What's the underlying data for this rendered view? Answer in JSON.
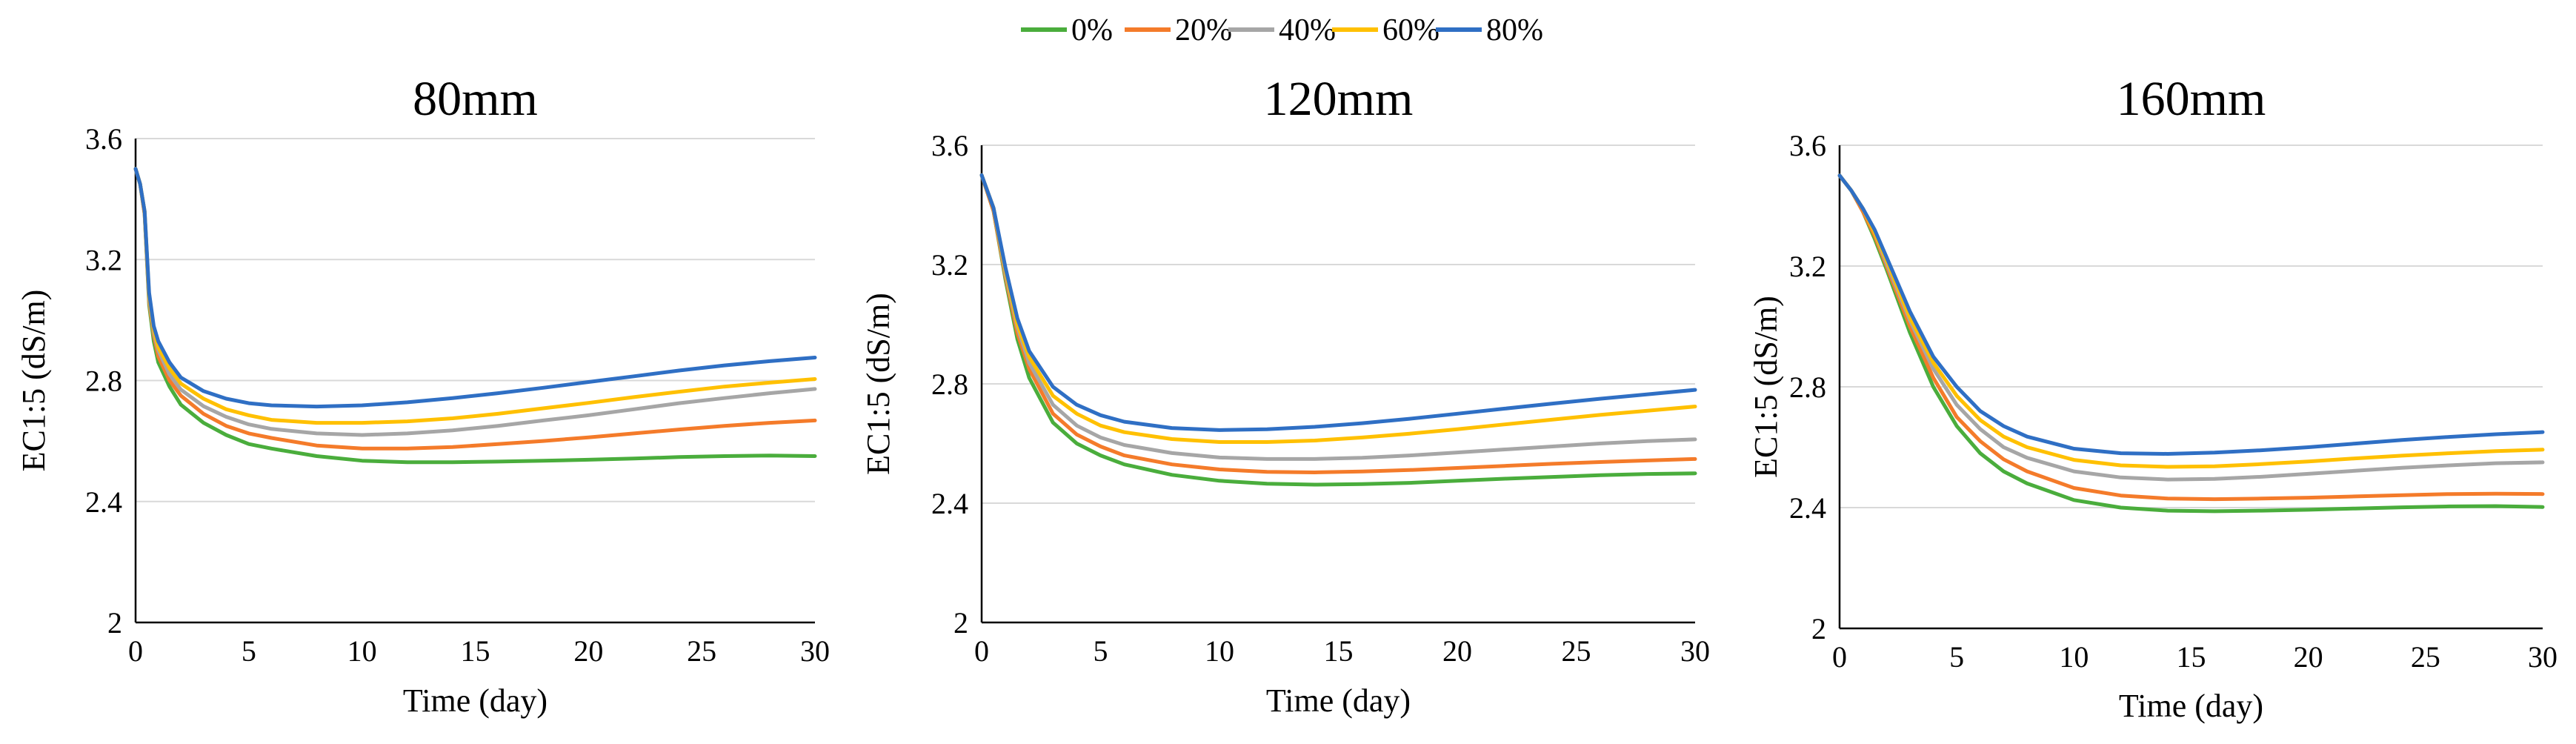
{
  "legend": {
    "entries": [
      "0%",
      "20%",
      "40%",
      "60%",
      "80%"
    ],
    "colors": [
      "#4aad3c",
      "#f47b2a",
      "#a6a6a6",
      "#ffc000",
      "#2f6fc4"
    ]
  },
  "chart_data": [
    {
      "type": "line",
      "title": "80mm",
      "xlabel": "Time (day)",
      "ylabel": "EC1:5 (dS/m)",
      "xlim": [
        0,
        30
      ],
      "ylim": [
        2,
        3.6
      ],
      "xticks": [
        "0",
        "5",
        "10",
        "15",
        "20",
        "25",
        "30"
      ],
      "yticks": [
        "2",
        "2.4",
        "2.8",
        "3.2",
        "3.6"
      ],
      "x": [
        0,
        0.2,
        0.4,
        0.6,
        0.8,
        1,
        1.5,
        2,
        3,
        4,
        5,
        6,
        8,
        10,
        12,
        14,
        16,
        18,
        20,
        22,
        24,
        26,
        28,
        30
      ],
      "series": [
        {
          "name": "0%",
          "values": [
            3.5,
            3.45,
            3.35,
            3.05,
            2.93,
            2.86,
            2.78,
            2.72,
            2.66,
            2.62,
            2.59,
            2.575,
            2.55,
            2.535,
            2.53,
            2.53,
            2.532,
            2.535,
            2.538,
            2.542,
            2.547,
            2.55,
            2.552,
            2.55
          ]
        },
        {
          "name": "20%",
          "values": [
            3.5,
            3.45,
            3.35,
            3.06,
            2.95,
            2.88,
            2.8,
            2.75,
            2.69,
            2.65,
            2.625,
            2.61,
            2.585,
            2.575,
            2.575,
            2.58,
            2.59,
            2.6,
            2.612,
            2.625,
            2.638,
            2.65,
            2.66,
            2.668
          ]
        },
        {
          "name": "40%",
          "values": [
            3.5,
            3.45,
            3.36,
            3.07,
            2.96,
            2.9,
            2.82,
            2.77,
            2.715,
            2.68,
            2.655,
            2.64,
            2.625,
            2.62,
            2.625,
            2.635,
            2.65,
            2.668,
            2.685,
            2.705,
            2.725,
            2.742,
            2.758,
            2.772
          ]
        },
        {
          "name": "60%",
          "values": [
            3.5,
            3.45,
            3.36,
            3.08,
            2.97,
            2.91,
            2.84,
            2.79,
            2.74,
            2.705,
            2.685,
            2.67,
            2.66,
            2.66,
            2.665,
            2.675,
            2.69,
            2.708,
            2.726,
            2.745,
            2.763,
            2.78,
            2.793,
            2.805
          ]
        },
        {
          "name": "80%",
          "values": [
            3.5,
            3.45,
            3.36,
            3.09,
            2.98,
            2.93,
            2.86,
            2.81,
            2.765,
            2.74,
            2.725,
            2.718,
            2.714,
            2.718,
            2.728,
            2.742,
            2.758,
            2.776,
            2.795,
            2.814,
            2.833,
            2.85,
            2.864,
            2.876
          ]
        }
      ]
    },
    {
      "type": "line",
      "title": "120mm",
      "xlabel": "Time (day)",
      "ylabel": "EC1:5 (dS/m)",
      "xlim": [
        0,
        30
      ],
      "ylim": [
        2,
        3.6
      ],
      "xticks": [
        "0",
        "5",
        "10",
        "15",
        "20",
        "25",
        "30"
      ],
      "yticks": [
        "2",
        "2.4",
        "2.8",
        "3.2",
        "3.6"
      ],
      "x": [
        0,
        0.5,
        1,
        1.5,
        2,
        3,
        4,
        5,
        6,
        8,
        10,
        12,
        14,
        16,
        18,
        20,
        22,
        24,
        26,
        28,
        30
      ],
      "series": [
        {
          "name": "0%",
          "values": [
            3.5,
            3.38,
            3.15,
            2.95,
            2.82,
            2.67,
            2.6,
            2.56,
            2.53,
            2.495,
            2.475,
            2.465,
            2.462,
            2.464,
            2.468,
            2.475,
            2.482,
            2.488,
            2.494,
            2.498,
            2.5
          ]
        },
        {
          "name": "20%",
          "values": [
            3.5,
            3.38,
            3.16,
            2.97,
            2.85,
            2.7,
            2.63,
            2.59,
            2.56,
            2.53,
            2.513,
            2.505,
            2.503,
            2.506,
            2.511,
            2.518,
            2.525,
            2.532,
            2.538,
            2.543,
            2.548
          ]
        },
        {
          "name": "40%",
          "values": [
            3.5,
            3.39,
            3.17,
            2.99,
            2.87,
            2.73,
            2.66,
            2.62,
            2.595,
            2.568,
            2.553,
            2.548,
            2.548,
            2.552,
            2.56,
            2.57,
            2.58,
            2.59,
            2.6,
            2.608,
            2.614
          ]
        },
        {
          "name": "60%",
          "values": [
            3.5,
            3.39,
            3.18,
            3.0,
            2.89,
            2.76,
            2.7,
            2.66,
            2.638,
            2.615,
            2.605,
            2.605,
            2.61,
            2.62,
            2.633,
            2.648,
            2.664,
            2.68,
            2.696,
            2.71,
            2.724
          ]
        },
        {
          "name": "80%",
          "values": [
            3.5,
            3.39,
            3.19,
            3.02,
            2.91,
            2.79,
            2.73,
            2.695,
            2.673,
            2.652,
            2.645,
            2.648,
            2.656,
            2.668,
            2.683,
            2.7,
            2.717,
            2.734,
            2.75,
            2.765,
            2.78
          ]
        }
      ]
    },
    {
      "type": "line",
      "title": "160mm",
      "xlabel": "Time (day)",
      "ylabel": "EC1:5 (dS/m)",
      "xlim": [
        0,
        30
      ],
      "ylim": [
        2,
        3.6
      ],
      "xticks": [
        "0",
        "5",
        "10",
        "15",
        "20",
        "25",
        "30"
      ],
      "yticks": [
        "2",
        "2.4",
        "2.8",
        "3.2",
        "3.6"
      ],
      "x": [
        0,
        0.5,
        1,
        1.5,
        2,
        3,
        4,
        5,
        6,
        7,
        8,
        10,
        12,
        14,
        16,
        18,
        20,
        22,
        24,
        26,
        28,
        30
      ],
      "series": [
        {
          "name": "0%",
          "values": [
            3.5,
            3.45,
            3.38,
            3.29,
            3.19,
            2.98,
            2.8,
            2.67,
            2.58,
            2.52,
            2.48,
            2.425,
            2.4,
            2.39,
            2.388,
            2.39,
            2.393,
            2.397,
            2.401,
            2.404,
            2.405,
            2.402
          ]
        },
        {
          "name": "20%",
          "values": [
            3.5,
            3.45,
            3.38,
            3.3,
            3.2,
            3.0,
            2.83,
            2.7,
            2.62,
            2.56,
            2.52,
            2.465,
            2.44,
            2.43,
            2.428,
            2.43,
            2.433,
            2.437,
            2.441,
            2.445,
            2.446,
            2.445
          ]
        },
        {
          "name": "40%",
          "values": [
            3.5,
            3.45,
            3.39,
            3.31,
            3.21,
            3.02,
            2.86,
            2.74,
            2.66,
            2.6,
            2.565,
            2.52,
            2.5,
            2.493,
            2.495,
            2.502,
            2.512,
            2.522,
            2.532,
            2.54,
            2.547,
            2.55
          ]
        },
        {
          "name": "60%",
          "values": [
            3.5,
            3.45,
            3.39,
            3.31,
            3.22,
            3.03,
            2.88,
            2.77,
            2.69,
            2.635,
            2.6,
            2.558,
            2.54,
            2.535,
            2.537,
            2.544,
            2.553,
            2.563,
            2.572,
            2.58,
            2.587,
            2.592
          ]
        },
        {
          "name": "80%",
          "values": [
            3.5,
            3.45,
            3.39,
            3.32,
            3.23,
            3.05,
            2.9,
            2.8,
            2.72,
            2.67,
            2.635,
            2.595,
            2.58,
            2.578,
            2.582,
            2.59,
            2.6,
            2.612,
            2.624,
            2.634,
            2.643,
            2.65
          ]
        }
      ]
    }
  ]
}
